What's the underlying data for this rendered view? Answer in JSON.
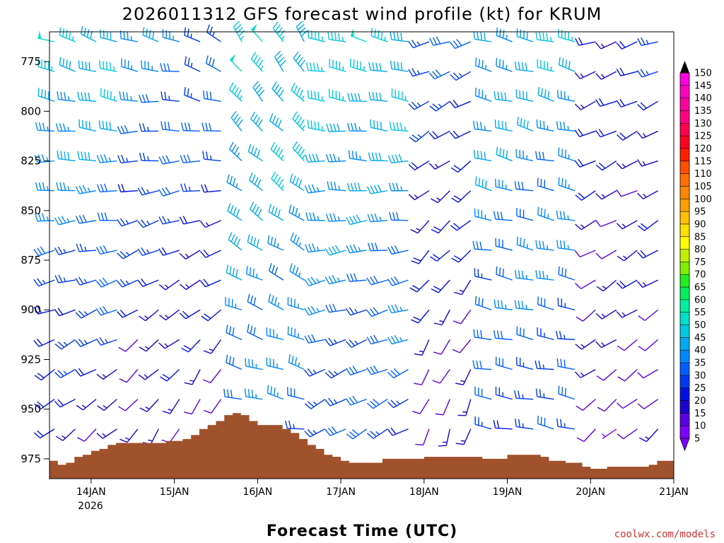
{
  "chart_data": {
    "type": "wind_profile",
    "title": "2026011312 GFS forecast wind profile (kt) for KRUM",
    "xlabel": "Forecast Time (UTC)",
    "ylabel": "",
    "y_axis": {
      "ticks": [
        775,
        800,
        825,
        850,
        875,
        900,
        925,
        950,
        975
      ],
      "range": [
        760,
        985
      ],
      "inverted": true
    },
    "x_axis": {
      "ticks": [
        "14JAN",
        "15JAN",
        "16JAN",
        "17JAN",
        "18JAN",
        "19JAN",
        "20JAN",
        "21JAN"
      ],
      "year_label": "2026",
      "range_days": [
        13.5,
        21.0
      ]
    },
    "pressure_levels": [
      765,
      780,
      795,
      810,
      825,
      840,
      855,
      870,
      885,
      900,
      915,
      930,
      945,
      960
    ],
    "time_step_hours": 6,
    "colorbar": {
      "levels": [
        5,
        10,
        15,
        20,
        25,
        30,
        35,
        40,
        45,
        50,
        55,
        60,
        65,
        70,
        75,
        80,
        85,
        90,
        95,
        100,
        105,
        110,
        115,
        120,
        125,
        130,
        135,
        140,
        145,
        150
      ],
      "colors": [
        "#7f00ff",
        "#5a00e6",
        "#2000d0",
        "#0010e0",
        "#0038f0",
        "#0060ff",
        "#0088ff",
        "#00aaf0",
        "#00c8e0",
        "#00e0c8",
        "#00f0a0",
        "#00f060",
        "#20f020",
        "#80f000",
        "#c0f000",
        "#ffff00",
        "#ffe000",
        "#ffc000",
        "#ffa000",
        "#ff8800",
        "#ff7000",
        "#ff5000",
        "#ff2000",
        "#ff0020",
        "#ff0050",
        "#ff0080",
        "#ff00a0",
        "#ff00c0",
        "#ff00e0"
      ]
    },
    "surface_pressure": {
      "x": [
        13.5,
        13.6,
        13.7,
        13.8,
        13.9,
        14.0,
        14.1,
        14.2,
        14.3,
        14.5,
        14.7,
        14.9,
        15.0,
        15.1,
        15.2,
        15.3,
        15.4,
        15.5,
        15.6,
        15.7,
        15.8,
        15.9,
        16.0,
        16.1,
        16.2,
        16.3,
        16.4,
        16.5,
        16.6,
        16.7,
        16.8,
        16.9,
        17.0,
        17.1,
        17.5,
        17.8,
        18.0,
        18.5,
        18.7,
        19.0,
        19.2,
        19.4,
        19.5,
        19.7,
        19.9,
        20.0,
        20.2,
        20.5,
        20.7,
        20.8,
        21.0
      ],
      "y": [
        976,
        978,
        977,
        974,
        973,
        971,
        970,
        968,
        967,
        967,
        967,
        966,
        966,
        965,
        963,
        960,
        958,
        956,
        953,
        952,
        953,
        956,
        958,
        958,
        958,
        960,
        962,
        965,
        968,
        970,
        973,
        974,
        976,
        977,
        975,
        975,
        974,
        974,
        975,
        973,
        973,
        974,
        976,
        977,
        979,
        980,
        979,
        979,
        978,
        976,
        976
      ]
    },
    "wind_segments": [
      {
        "t0": 13.5,
        "t1": 14.5,
        "dir_top": 290,
        "dir_bot": 230,
        "spd_top": 45,
        "spd_bot": 15
      },
      {
        "t0": 14.5,
        "t1": 15.25,
        "dir_top": 285,
        "dir_bot": 215,
        "spd_top": 35,
        "spd_bot": 10
      },
      {
        "t0": 15.25,
        "t1": 15.75,
        "dir_top": 300,
        "dir_bot": 200,
        "spd_top": 30,
        "spd_bot": 10
      },
      {
        "t0": 15.75,
        "t1": 16.75,
        "dir_top": 325,
        "dir_bot": 280,
        "spd_top": 45,
        "spd_bot": 30
      },
      {
        "t0": 16.75,
        "t1": 18.0,
        "dir_top": 285,
        "dir_bot": 240,
        "spd_top": 45,
        "spd_bot": 25
      },
      {
        "t0": 18.0,
        "t1": 18.75,
        "dir_top": 250,
        "dir_bot": 200,
        "spd_top": 25,
        "spd_bot": 10
      },
      {
        "t0": 18.75,
        "t1": 20.0,
        "dir_top": 285,
        "dir_bot": 280,
        "spd_top": 40,
        "spd_bot": 25
      },
      {
        "t0": 20.0,
        "t1": 21.0,
        "dir_top": 250,
        "dir_bot": 230,
        "spd_top": 20,
        "spd_bot": 10
      }
    ]
  },
  "credit": "coolwx.com/models"
}
